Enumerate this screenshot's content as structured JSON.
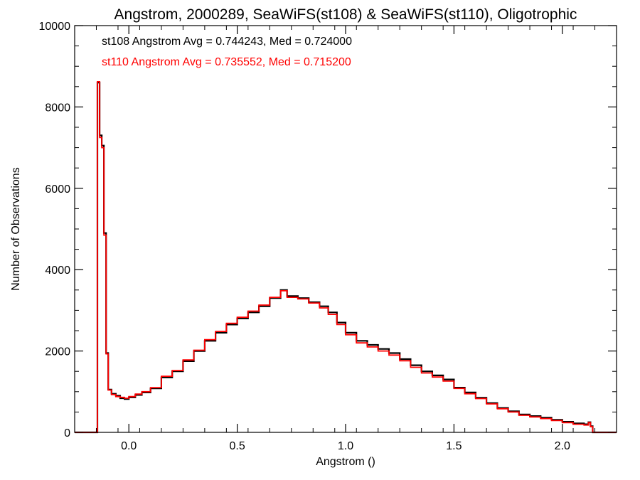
{
  "chart_data": {
    "type": "line",
    "title": "Angstrom, 2000289, SeaWiFS(st108) & SeaWiFS(st110), Oligotrophic",
    "xlabel": "Angstrom ()",
    "ylabel": "Number of Observations",
    "xlim": [
      -0.25,
      2.25
    ],
    "ylim": [
      0,
      10000
    ],
    "x_ticks": [
      0.0,
      0.5,
      1.0,
      1.5,
      2.0
    ],
    "x_tick_labels": [
      "0.0",
      "0.5",
      "1.0",
      "1.5",
      "2.0"
    ],
    "y_ticks": [
      0,
      2000,
      4000,
      6000,
      8000,
      10000
    ],
    "y_tick_labels": [
      "0",
      "2000",
      "4000",
      "6000",
      "8000",
      "10000"
    ],
    "grid": false,
    "annotations": [
      {
        "text": "st108 Angstrom Avg = 0.744243, Med = 0.724000",
        "color": "#000000"
      },
      {
        "text": "st110 Angstrom Avg = 0.735552, Med = 0.715200",
        "color": "#ff0000"
      }
    ],
    "series": [
      {
        "color": "#000000",
        "points": [
          [
            -0.25,
            0
          ],
          [
            -0.16,
            0
          ],
          [
            -0.145,
            8600
          ],
          [
            -0.135,
            7300
          ],
          [
            -0.125,
            7050
          ],
          [
            -0.115,
            4900
          ],
          [
            -0.105,
            1950
          ],
          [
            -0.095,
            1050
          ],
          [
            -0.08,
            950
          ],
          [
            -0.06,
            900
          ],
          [
            -0.04,
            840
          ],
          [
            -0.02,
            820
          ],
          [
            0.0,
            860
          ],
          [
            0.03,
            920
          ],
          [
            0.06,
            980
          ],
          [
            0.1,
            1080
          ],
          [
            0.15,
            1350
          ],
          [
            0.2,
            1500
          ],
          [
            0.25,
            1750
          ],
          [
            0.3,
            2000
          ],
          [
            0.35,
            2250
          ],
          [
            0.4,
            2450
          ],
          [
            0.45,
            2650
          ],
          [
            0.5,
            2800
          ],
          [
            0.55,
            2950
          ],
          [
            0.6,
            3100
          ],
          [
            0.65,
            3300
          ],
          [
            0.7,
            3500
          ],
          [
            0.73,
            3350
          ],
          [
            0.78,
            3300
          ],
          [
            0.83,
            3200
          ],
          [
            0.88,
            3100
          ],
          [
            0.92,
            2950
          ],
          [
            0.96,
            2700
          ],
          [
            1.0,
            2450
          ],
          [
            1.05,
            2250
          ],
          [
            1.1,
            2150
          ],
          [
            1.15,
            2050
          ],
          [
            1.2,
            1950
          ],
          [
            1.25,
            1800
          ],
          [
            1.3,
            1650
          ],
          [
            1.35,
            1500
          ],
          [
            1.4,
            1400
          ],
          [
            1.45,
            1300
          ],
          [
            1.5,
            1100
          ],
          [
            1.55,
            980
          ],
          [
            1.6,
            850
          ],
          [
            1.65,
            720
          ],
          [
            1.7,
            600
          ],
          [
            1.75,
            520
          ],
          [
            1.8,
            440
          ],
          [
            1.85,
            400
          ],
          [
            1.9,
            360
          ],
          [
            1.95,
            310
          ],
          [
            2.0,
            260
          ],
          [
            2.05,
            220
          ],
          [
            2.1,
            200
          ],
          [
            2.12,
            250
          ],
          [
            2.13,
            150
          ],
          [
            2.14,
            0
          ],
          [
            2.25,
            0
          ]
        ]
      },
      {
        "color": "#ff0000",
        "points": [
          [
            -0.25,
            0
          ],
          [
            -0.16,
            0
          ],
          [
            -0.145,
            8620
          ],
          [
            -0.135,
            7250
          ],
          [
            -0.125,
            7000
          ],
          [
            -0.115,
            4850
          ],
          [
            -0.105,
            1930
          ],
          [
            -0.095,
            1040
          ],
          [
            -0.08,
            930
          ],
          [
            -0.06,
            880
          ],
          [
            -0.04,
            860
          ],
          [
            -0.02,
            840
          ],
          [
            0.0,
            880
          ],
          [
            0.03,
            940
          ],
          [
            0.06,
            1000
          ],
          [
            0.1,
            1100
          ],
          [
            0.15,
            1380
          ],
          [
            0.2,
            1520
          ],
          [
            0.25,
            1780
          ],
          [
            0.3,
            2020
          ],
          [
            0.35,
            2280
          ],
          [
            0.4,
            2480
          ],
          [
            0.45,
            2680
          ],
          [
            0.5,
            2830
          ],
          [
            0.55,
            2980
          ],
          [
            0.6,
            3130
          ],
          [
            0.65,
            3320
          ],
          [
            0.7,
            3480
          ],
          [
            0.73,
            3320
          ],
          [
            0.78,
            3280
          ],
          [
            0.83,
            3180
          ],
          [
            0.88,
            3060
          ],
          [
            0.92,
            2900
          ],
          [
            0.96,
            2650
          ],
          [
            1.0,
            2400
          ],
          [
            1.05,
            2200
          ],
          [
            1.1,
            2100
          ],
          [
            1.15,
            2000
          ],
          [
            1.2,
            1900
          ],
          [
            1.25,
            1760
          ],
          [
            1.3,
            1600
          ],
          [
            1.35,
            1460
          ],
          [
            1.4,
            1360
          ],
          [
            1.45,
            1260
          ],
          [
            1.5,
            1080
          ],
          [
            1.55,
            950
          ],
          [
            1.6,
            830
          ],
          [
            1.65,
            700
          ],
          [
            1.7,
            580
          ],
          [
            1.75,
            500
          ],
          [
            1.8,
            420
          ],
          [
            1.85,
            380
          ],
          [
            1.9,
            340
          ],
          [
            1.95,
            290
          ],
          [
            2.0,
            240
          ],
          [
            2.05,
            200
          ],
          [
            2.1,
            180
          ],
          [
            2.12,
            240
          ],
          [
            2.13,
            140
          ],
          [
            2.14,
            0
          ],
          [
            2.25,
            0
          ]
        ]
      }
    ]
  }
}
